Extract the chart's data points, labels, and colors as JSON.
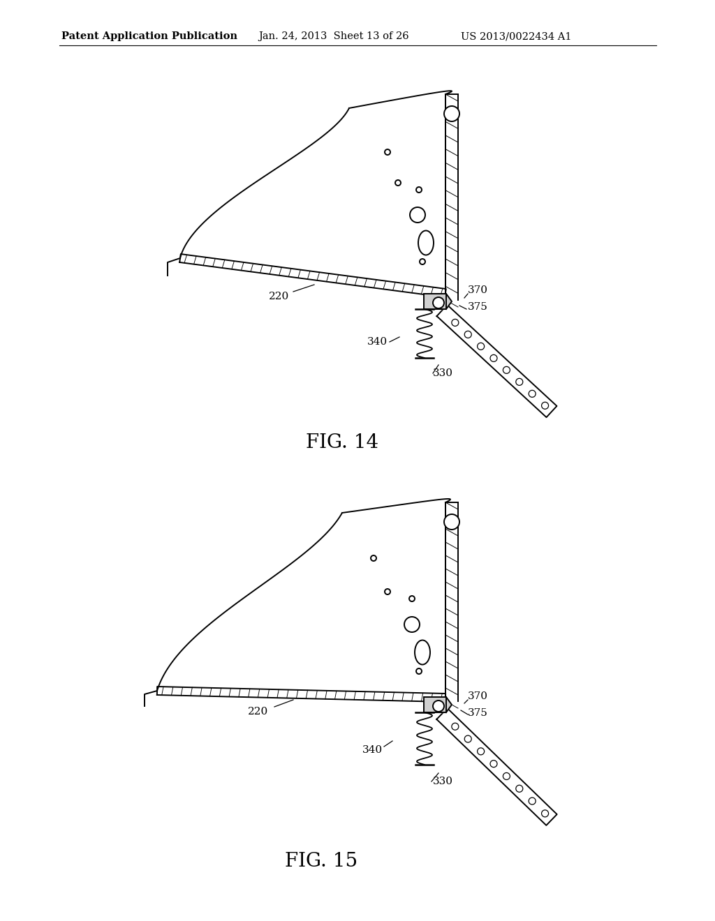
{
  "background_color": "#ffffff",
  "header_left": "Patent Application Publication",
  "header_center": "Jan. 24, 2013  Sheet 13 of 26",
  "header_right": "US 2013/0022434 A1",
  "fig14_label": "FIG. 14",
  "fig15_label": "FIG. 15",
  "label_fontsize": 11,
  "header_fontsize": 10.5,
  "fig_label_fontsize": 20
}
